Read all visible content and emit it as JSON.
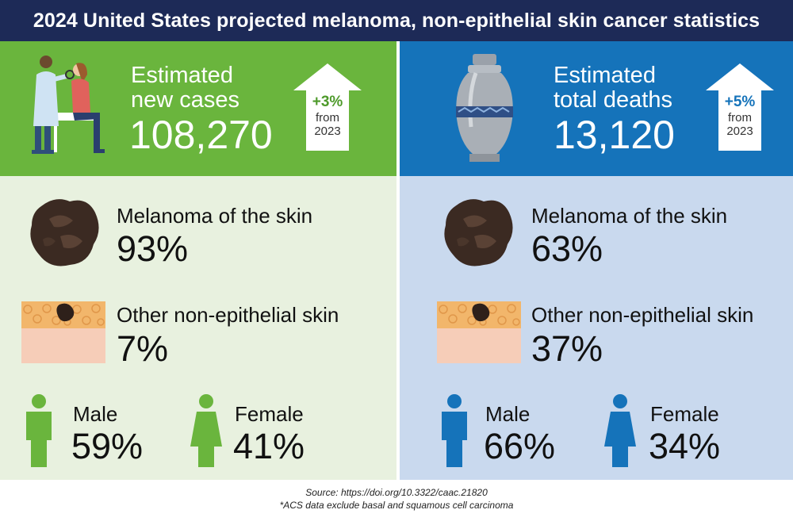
{
  "title": "2024 United States projected melanoma, non-epithelial skin cancer statistics",
  "colors": {
    "header_navy": "#1d2a57",
    "green": "#6ab53d",
    "green_light": "#e8f1df",
    "blue": "#1573ba",
    "blue_light": "#c9d9ee"
  },
  "new_cases": {
    "label_line1": "Estimated",
    "label_line2": "new cases",
    "value": "108,270",
    "change": "+3%",
    "from_line1": "from",
    "from_line2": "2023",
    "melanoma_label": "Melanoma of the skin",
    "melanoma_value": "93%",
    "other_label": "Other non-epithelial skin",
    "other_value": "7%",
    "male_label": "Male",
    "male_value": "59%",
    "female_label": "Female",
    "female_value": "41%",
    "icons": [
      "doctor-examining-patient-icon",
      "melanoma-lesion-icon",
      "skin-layer-icon",
      "male-figure-icon",
      "female-figure-icon"
    ]
  },
  "deaths": {
    "label_line1": "Estimated",
    "label_line2": "total deaths",
    "value": "13,120",
    "change": "+5%",
    "from_line1": "from",
    "from_line2": "2023",
    "melanoma_label": "Melanoma of the skin",
    "melanoma_value": "63%",
    "other_label": "Other non-epithelial skin",
    "other_value": "37%",
    "male_label": "Male",
    "male_value": "66%",
    "female_label": "Female",
    "female_value": "34%",
    "icons": [
      "urn-icon",
      "melanoma-lesion-icon",
      "skin-layer-icon",
      "male-figure-icon",
      "female-figure-icon"
    ]
  },
  "footer": {
    "source": "Source: https://doi.org/10.3322/caac.21820",
    "note": "*ACS data exclude basal and squamous cell carcinoma"
  }
}
